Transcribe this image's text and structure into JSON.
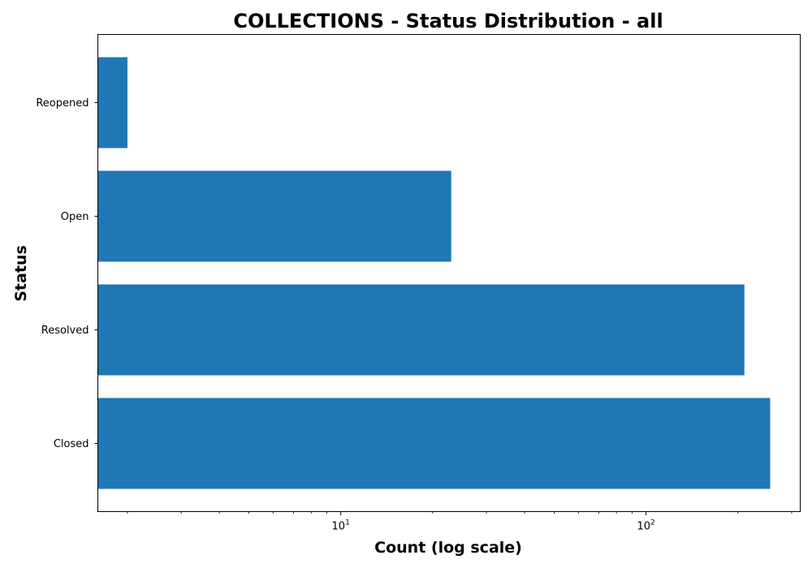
{
  "chart_data": {
    "type": "bar",
    "orientation": "horizontal",
    "title": "COLLECTIONS - Status Distribution - all",
    "xlabel": "Count (log scale)",
    "ylabel": "Status",
    "x_scale": "log",
    "xlim": [
      1.6,
      320
    ],
    "categories": [
      "Closed",
      "Resolved",
      "Open",
      "Reopened"
    ],
    "values": [
      255,
      210,
      23,
      2
    ],
    "major_ticks": [
      {
        "value": 10,
        "base": "10",
        "exp": "1"
      },
      {
        "value": 100,
        "base": "10",
        "exp": "2"
      }
    ],
    "minor_ticks": [
      2,
      3,
      4,
      5,
      6,
      7,
      8,
      9,
      20,
      30,
      40,
      50,
      60,
      70,
      80,
      90,
      200,
      300
    ],
    "bar_color": "#1f77b4",
    "grid": false,
    "legend": "none"
  }
}
